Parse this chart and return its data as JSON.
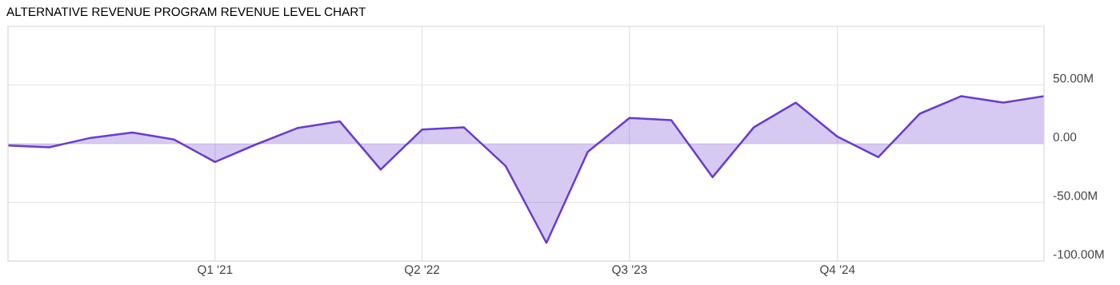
{
  "chart_data": {
    "type": "area",
    "title": "ALTERNATIVE REVENUE PROGRAM REVENUE LEVEL CHART",
    "x": [
      "2019-12-31",
      "2020-03-31",
      "2020-06-30",
      "2020-09-30",
      "2020-12-31",
      "2021-03-31",
      "2021-06-30",
      "2021-09-30",
      "2021-12-31",
      "2022-03-31",
      "2022-06-30",
      "2022-09-30",
      "2022-12-31",
      "2023-03-31",
      "2023-06-30",
      "2023-09-30",
      "2023-12-31",
      "2024-03-31",
      "2024-06-30",
      "2024-09-30",
      "2024-12-31",
      "2025-03-31",
      "2025-06-30",
      "2025-09-30",
      "2025-12-31",
      "2026-03-31"
    ],
    "series": [
      {
        "color": "#6a3bd0",
        "values": [
          -1.5,
          -3,
          5,
          9.5,
          3.5,
          -15.5,
          -0.5,
          13.5,
          19,
          -22,
          12,
          14,
          -19,
          -84.5,
          -7,
          22,
          20,
          -28.5,
          14,
          35,
          6,
          -11.5,
          25.5,
          40.5,
          35,
          40.5
        ]
      }
    ],
    "xlim": [
      "2019-12-31",
      "2026-03-31"
    ],
    "xticks": [
      {
        "value": "2021-03-31",
        "label": "Q1 '21"
      },
      {
        "value": "2022-06-30",
        "label": "Q2 '22"
      },
      {
        "value": "2023-09-30",
        "label": "Q3 '23"
      },
      {
        "value": "2024-12-31",
        "label": "Q4 '24"
      }
    ],
    "ylim": [
      -100,
      100
    ],
    "yticks": [
      {
        "value": -100,
        "label": "-100.00M"
      },
      {
        "value": -50,
        "label": "-50.00M"
      },
      {
        "value": 0,
        "label": "0.00"
      },
      {
        "value": 50,
        "label": "50.00M"
      }
    ],
    "grid": true
  }
}
